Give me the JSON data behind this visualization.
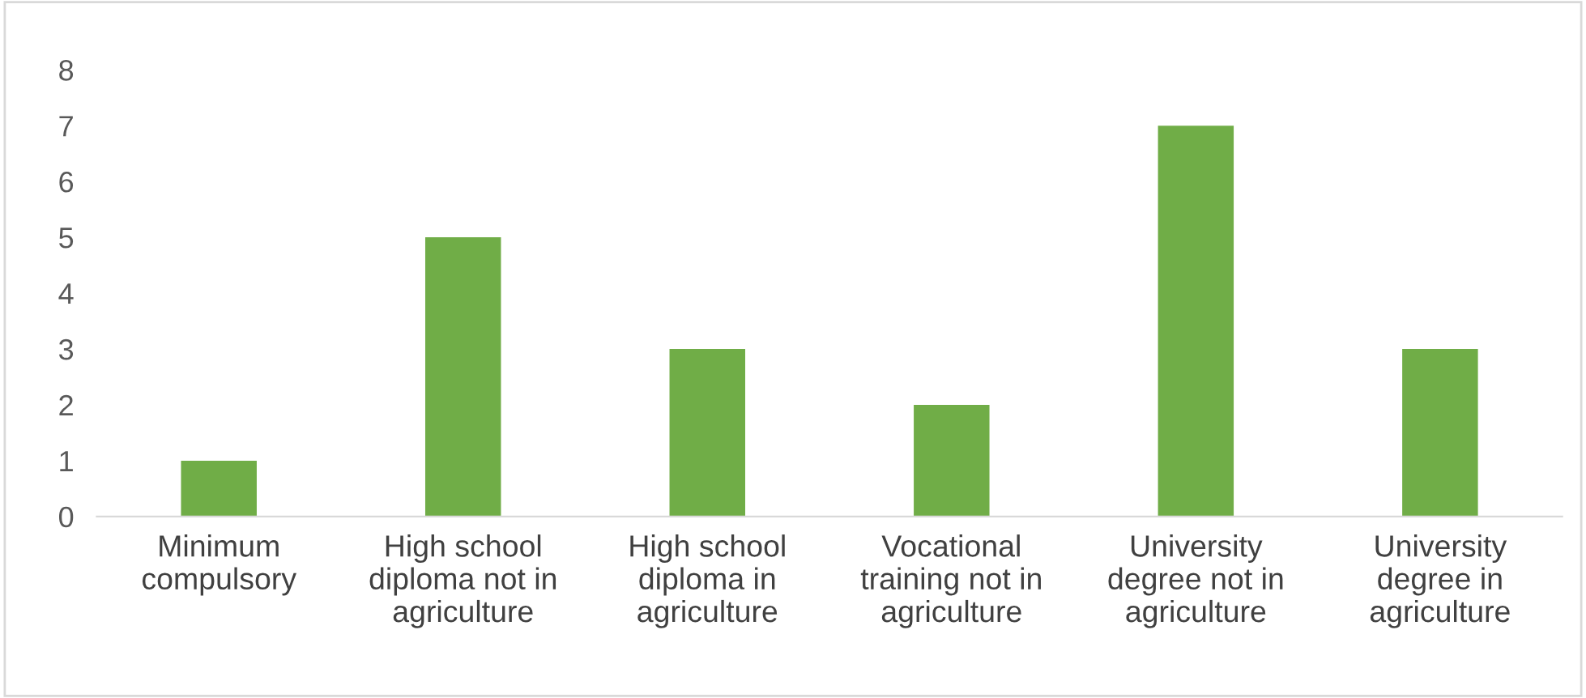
{
  "chart_data": {
    "type": "bar",
    "categories": [
      "Minimum compulsory",
      "High school diploma not in agriculture",
      "High school diploma in agriculture",
      "Vocational training not in agriculture",
      "University degree not in agriculture",
      "University degree in agriculture"
    ],
    "values": [
      1,
      5,
      3,
      2,
      7,
      3
    ],
    "color": "#70ad47",
    "ylim": [
      0,
      8
    ],
    "yticks": [
      0,
      1,
      2,
      3,
      4,
      5,
      6,
      7,
      8
    ],
    "grid": false
  }
}
